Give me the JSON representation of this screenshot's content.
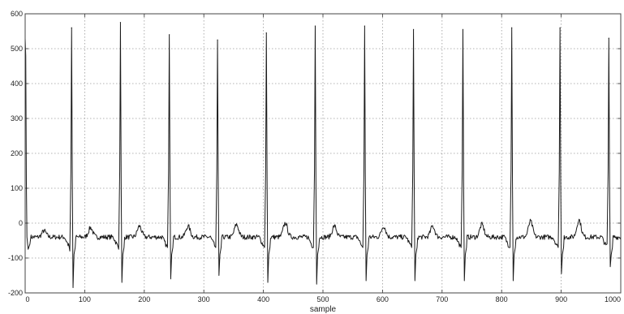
{
  "chart_data": {
    "type": "line",
    "title": "",
    "xlabel": "sample",
    "ylabel": "",
    "xlim": [
      0,
      1000
    ],
    "ylim": [
      -200,
      600
    ],
    "xticks": [
      0,
      100,
      200,
      300,
      400,
      500,
      600,
      700,
      800,
      900,
      1000
    ],
    "yticks": [
      -200,
      -100,
      0,
      100,
      200,
      300,
      400,
      500,
      600
    ],
    "grid": true,
    "legend": "none",
    "colors": {
      "line": "#1a1a1a",
      "grid": "#9a9a9a",
      "frame": "#444444"
    },
    "baseline": -40,
    "start_value": 530,
    "beats": [
      {
        "r_sample": 78,
        "r_peak": 560,
        "s_min": -185,
        "q_min": -80,
        "t_peak": -20
      },
      {
        "r_sample": 160,
        "r_peak": 575,
        "s_min": -170,
        "q_min": -75,
        "t_peak": -10
      },
      {
        "r_sample": 242,
        "r_peak": 540,
        "s_min": -160,
        "q_min": -70,
        "t_peak": -5
      },
      {
        "r_sample": 323,
        "r_peak": 525,
        "s_min": -150,
        "q_min": -70,
        "t_peak": -5
      },
      {
        "r_sample": 405,
        "r_peak": 545,
        "s_min": -170,
        "q_min": -70,
        "t_peak": 0
      },
      {
        "r_sample": 487,
        "r_peak": 565,
        "s_min": -175,
        "q_min": -70,
        "t_peak": 5
      },
      {
        "r_sample": 570,
        "r_peak": 565,
        "s_min": -165,
        "q_min": -70,
        "t_peak": -5
      },
      {
        "r_sample": 652,
        "r_peak": 555,
        "s_min": -165,
        "q_min": -70,
        "t_peak": -5
      },
      {
        "r_sample": 735,
        "r_peak": 555,
        "s_min": -165,
        "q_min": -70,
        "t_peak": -5
      },
      {
        "r_sample": 817,
        "r_peak": 560,
        "s_min": -165,
        "q_min": -70,
        "t_peak": 0
      },
      {
        "r_sample": 898,
        "r_peak": 560,
        "s_min": -145,
        "q_min": -70,
        "t_peak": 10
      },
      {
        "r_sample": 980,
        "r_peak": 530,
        "s_min": -125,
        "q_min": -60,
        "t_peak": 15
      }
    ]
  }
}
